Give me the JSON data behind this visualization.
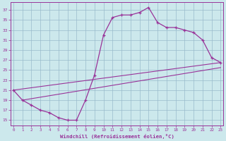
{
  "xlabel": "Windchill (Refroidissement éolien,°C)",
  "bg_color": "#cce8ec",
  "line_color": "#993399",
  "grid_color": "#99bbcc",
  "x_ticks": [
    0,
    1,
    2,
    3,
    4,
    5,
    6,
    7,
    8,
    9,
    10,
    11,
    12,
    13,
    14,
    15,
    16,
    17,
    18,
    19,
    20,
    21,
    22,
    23
  ],
  "y_ticks": [
    15,
    17,
    19,
    21,
    23,
    25,
    27,
    29,
    31,
    33,
    35,
    37
  ],
  "ylim": [
    14.0,
    38.5
  ],
  "xlim": [
    -0.3,
    23.3
  ],
  "series": [
    [
      0,
      21.0
    ],
    [
      1,
      19.0
    ],
    [
      2,
      18.0
    ],
    [
      3,
      17.0
    ],
    [
      4,
      16.5
    ],
    [
      5,
      15.5
    ],
    [
      6,
      15.0
    ],
    [
      7,
      15.0
    ],
    [
      8,
      19.0
    ],
    [
      9,
      24.0
    ],
    [
      10,
      32.0
    ],
    [
      11,
      35.5
    ],
    [
      12,
      36.0
    ],
    [
      13,
      36.0
    ],
    [
      14,
      36.5
    ],
    [
      15,
      37.5
    ],
    [
      16,
      34.5
    ],
    [
      17,
      33.5
    ],
    [
      18,
      33.5
    ],
    [
      19,
      33.0
    ],
    [
      20,
      32.5
    ],
    [
      21,
      31.0
    ],
    [
      22,
      27.5
    ],
    [
      23,
      26.5
    ]
  ],
  "line2": [
    [
      0,
      21.0
    ],
    [
      23,
      26.5
    ]
  ],
  "line3": [
    [
      1,
      19.0
    ],
    [
      23,
      25.5
    ]
  ],
  "figwidth": 3.2,
  "figheight": 2.0,
  "dpi": 100
}
